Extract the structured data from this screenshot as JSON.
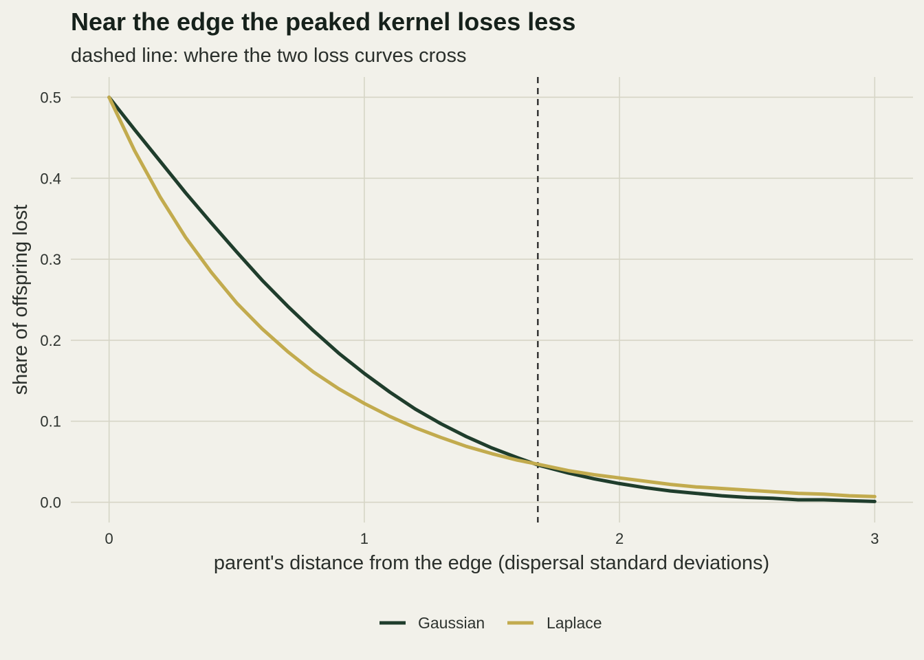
{
  "chart_data": {
    "type": "line",
    "title": "Near the edge the peaked kernel loses less",
    "subtitle": "dashed line: where the two loss curves cross",
    "xlabel": "parent's distance from the edge (dispersal standard deviations)",
    "ylabel": "share of offspring lost",
    "xlim": [
      -0.15,
      3.15
    ],
    "ylim": [
      -0.025,
      0.525
    ],
    "x_ticks": [
      0,
      1,
      2,
      3
    ],
    "x_tick_labels": [
      "0",
      "1",
      "2",
      "3"
    ],
    "y_ticks": [
      0.0,
      0.1,
      0.2,
      0.3,
      0.4,
      0.5
    ],
    "y_tick_labels": [
      "0.0",
      "0.1",
      "0.2",
      "0.3",
      "0.4",
      "0.5"
    ],
    "grid": true,
    "legend_position": "bottom",
    "x": [
      0,
      0.1,
      0.2,
      0.3,
      0.4,
      0.5,
      0.6,
      0.7,
      0.8,
      0.9,
      1.0,
      1.1,
      1.2,
      1.3,
      1.4,
      1.5,
      1.6,
      1.68,
      1.8,
      1.9,
      2.0,
      2.1,
      2.2,
      2.3,
      2.4,
      2.5,
      2.6,
      2.7,
      2.8,
      2.9,
      3.0
    ],
    "series": [
      {
        "name": "Gaussian",
        "color": "#1f3d2c",
        "values": [
          0.5,
          0.46,
          0.421,
          0.382,
          0.345,
          0.309,
          0.274,
          0.242,
          0.212,
          0.184,
          0.159,
          0.136,
          0.115,
          0.097,
          0.081,
          0.067,
          0.055,
          0.046,
          0.036,
          0.029,
          0.023,
          0.018,
          0.014,
          0.011,
          0.008,
          0.006,
          0.005,
          0.003,
          0.003,
          0.002,
          0.001
        ]
      },
      {
        "name": "Laplace",
        "color": "#c2ab4e",
        "values": [
          0.5,
          0.434,
          0.377,
          0.327,
          0.284,
          0.246,
          0.214,
          0.186,
          0.161,
          0.14,
          0.122,
          0.106,
          0.092,
          0.08,
          0.069,
          0.06,
          0.052,
          0.047,
          0.039,
          0.034,
          0.03,
          0.026,
          0.022,
          0.019,
          0.017,
          0.015,
          0.013,
          0.011,
          0.01,
          0.008,
          0.007
        ]
      }
    ],
    "vline": {
      "x": 1.68,
      "style": "dashed",
      "color": "#2b2b2b"
    }
  }
}
